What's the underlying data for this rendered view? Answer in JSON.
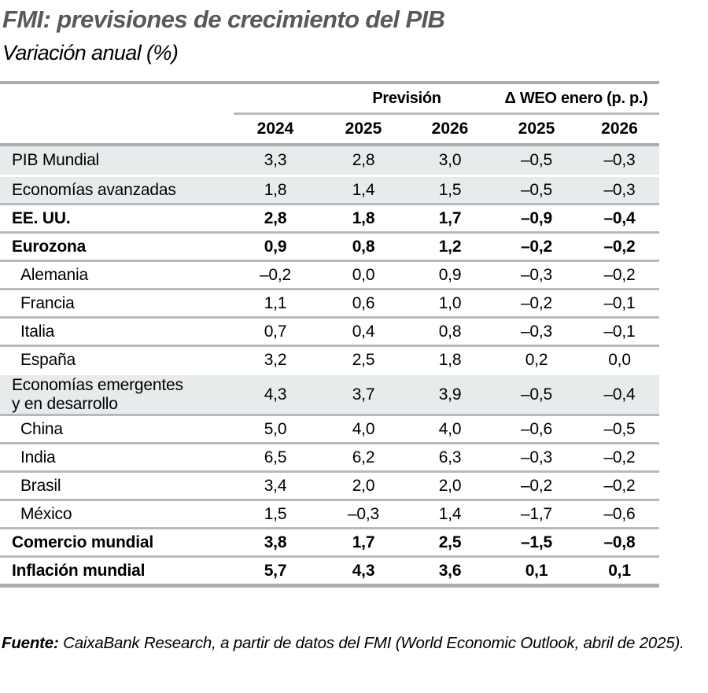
{
  "title": "FMI: previsiones de crecimiento del PIB",
  "subtitle": "Variación anual (%)",
  "table": {
    "group_headers": [
      "Previsión",
      "Δ WEO enero (p. p.)"
    ],
    "year_headers": [
      "2024",
      "2025",
      "2026",
      "2025",
      "2026"
    ]
  },
  "footer": {
    "label": "Fuente:",
    "text": " CaixaBank Research, a partir de datos del FMI (World Economic Outlook, abril de 2025)."
  },
  "colors": {
    "title_gray": "#58595b",
    "shaded_row_bg": "#e7ebec",
    "separator": "#b2bcc0",
    "thick_rule": "#a9aeb0",
    "text": "#000000"
  },
  "chart_data": {
    "type": "table",
    "title": "FMI: previsiones de crecimiento del PIB",
    "subtitle": "Variación anual (%)",
    "column_groups": [
      {
        "label": "",
        "span": 1
      },
      {
        "label": "Previsión",
        "span": 2
      },
      {
        "label": "Δ WEO enero (p. p.)",
        "span": 2
      }
    ],
    "columns": [
      "2024",
      "2025",
      "2026",
      "2025",
      "2026"
    ],
    "rows": [
      {
        "label": "PIB Mundial",
        "values": [
          3.3,
          2.8,
          3.0,
          -0.5,
          -0.3
        ],
        "shaded": true
      },
      {
        "label": "Economías avanzadas",
        "values": [
          1.8,
          1.4,
          1.5,
          -0.5,
          -0.3
        ],
        "shaded": true,
        "white_separator": true
      },
      {
        "label": "EE. UU.",
        "values": [
          2.8,
          1.8,
          1.7,
          -0.9,
          -0.4
        ],
        "emphasis": true
      },
      {
        "label": "Eurozona",
        "values": [
          0.9,
          0.8,
          1.2,
          -0.2,
          -0.2
        ],
        "emphasis": true
      },
      {
        "label": "Alemania",
        "values": [
          -0.2,
          0.0,
          0.9,
          -0.3,
          -0.2
        ],
        "indent": true
      },
      {
        "label": "Francia",
        "values": [
          1.1,
          0.6,
          1.0,
          -0.2,
          -0.1
        ],
        "indent": true
      },
      {
        "label": "Italia",
        "values": [
          0.7,
          0.4,
          0.8,
          -0.3,
          -0.1
        ],
        "indent": true
      },
      {
        "label": "España",
        "values": [
          3.2,
          2.5,
          1.8,
          0.2,
          0.0
        ],
        "indent": true
      },
      {
        "label": "Economías emergentes\ny en desarrollo",
        "values": [
          4.3,
          3.7,
          3.9,
          -0.5,
          -0.4
        ],
        "shaded": true,
        "tall": true,
        "white_separator": true
      },
      {
        "label": "China",
        "values": [
          5.0,
          4.0,
          4.0,
          -0.6,
          -0.5
        ],
        "indent": true
      },
      {
        "label": "India",
        "values": [
          6.5,
          6.2,
          6.3,
          -0.3,
          -0.2
        ],
        "indent": true
      },
      {
        "label": "Brasil",
        "values": [
          3.4,
          2.0,
          2.0,
          -0.2,
          -0.2
        ],
        "indent": true
      },
      {
        "label": "México",
        "values": [
          1.5,
          -0.3,
          1.4,
          -1.7,
          -0.6
        ],
        "indent": true
      },
      {
        "label": "Comercio mundial",
        "values": [
          3.8,
          1.7,
          2.5,
          -1.5,
          -0.8
        ],
        "emphasis": true
      },
      {
        "label": "Inflación mundial",
        "values": [
          5.7,
          4.3,
          3.6,
          0.1,
          0.1
        ],
        "emphasis": true
      }
    ],
    "source": "Fuente: CaixaBank Research, a partir de datos del FMI (World Economic Outlook, abril de 2025).",
    "decimal_separator": ",",
    "negative_sign": "–"
  }
}
